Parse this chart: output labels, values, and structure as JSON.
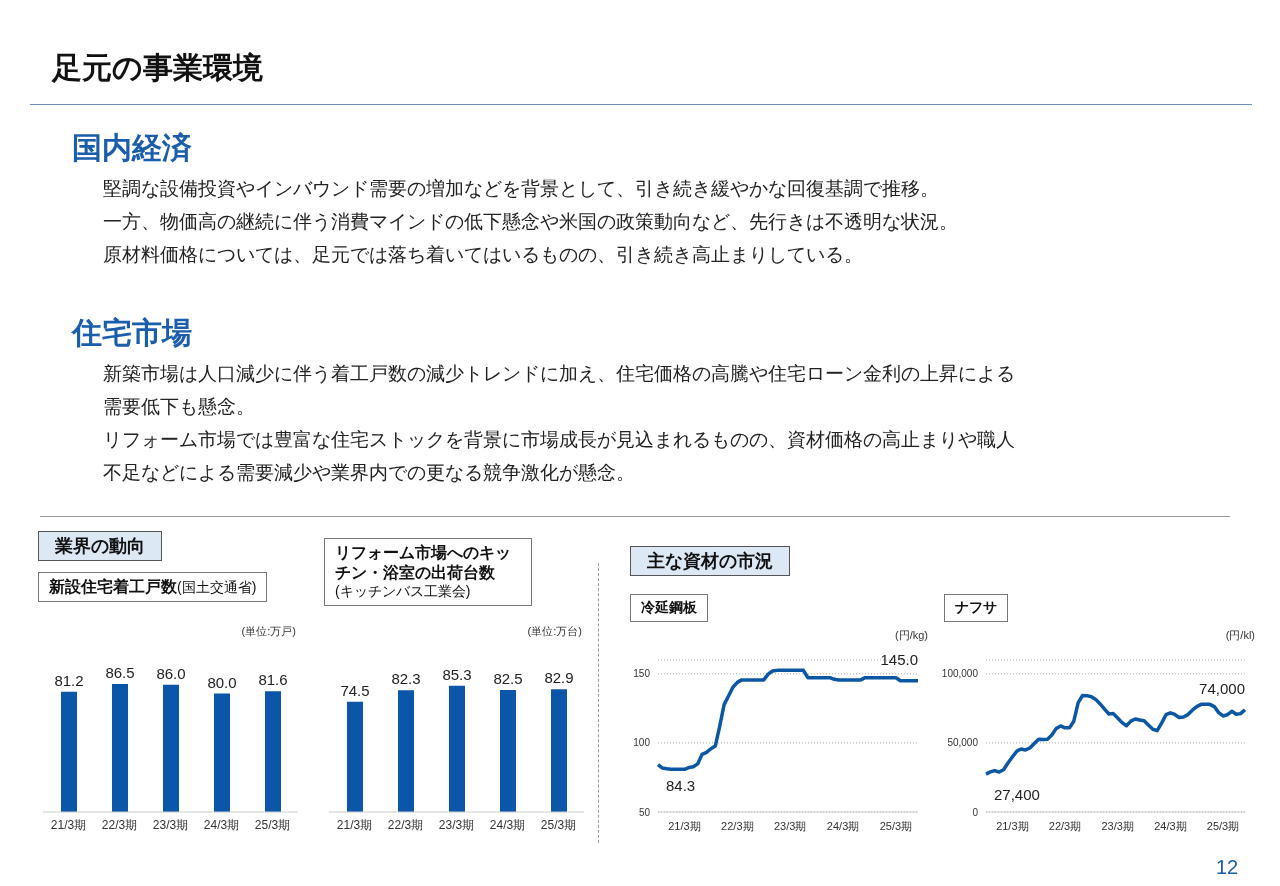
{
  "chart_data": [
    {
      "type": "other",
      "title": "足元の事業環境",
      "annotations": [
        "国内経済",
        "堅調な設備投資やインバウンド需要の増加などを背景として、引き続き緩やかな回復基調で推移。",
        "一方、物価高の継続に伴う消費マインドの低下懸念や米国の政策動向など、先行きは不透明な状況。",
        "原材料価格については、足元では落ち着いてはいるものの、引き続き高止まりしている。",
        "住宅市場",
        "新築市場は人口減少に伴う着工戸数の減少トレンドに加え、住宅価格の高騰や住宅ローン金利の上昇による",
        "需要低下も懸念。",
        "リフォーム市場では豊富な住宅ストックを背景に市場成長が見込まれるものの、資材価格の高止まりや職人",
        "不足などによる需要減少や業界内での更なる競争激化が懸念。",
        "業界の動向",
        "主な資材の市況",
        "12"
      ]
    },
    {
      "type": "bar",
      "title": "新設住宅着工戸数",
      "subtitle": "(国土交通省)",
      "ylabel": "(単位:万戸)",
      "categories": [
        "21/3期",
        "22/3期",
        "23/3期",
        "24/3期",
        "25/3期"
      ],
      "values": [
        81.2,
        86.5,
        86.0,
        80.0,
        81.6
      ],
      "value_labels": [
        "81.2",
        "86.5",
        "86.0",
        "80.0",
        "81.6"
      ],
      "color": "#0b56a8",
      "tick_labels": "x"
    },
    {
      "type": "bar",
      "title": "リフォーム市場へのキッチン・浴室の出荷台数",
      "subtitle": "(キッチンバス工業会)",
      "ylabel": "(単位:万台)",
      "categories": [
        "21/3期",
        "22/3期",
        "23/3期",
        "24/3期",
        "25/3期"
      ],
      "values": [
        74.5,
        82.3,
        85.3,
        82.5,
        82.9
      ],
      "value_labels": [
        "74.5",
        "82.3",
        "85.3",
        "82.5",
        "82.9"
      ],
      "color": "#0b56a8",
      "tick_labels": "x"
    },
    {
      "type": "line",
      "title": "冷延鋼板",
      "ylabel": "(円/kg)",
      "annotations": [
        "84.3",
        "145.0"
      ],
      "categories": [
        null,
        null,
        null,
        null,
        null,
        null,
        "21/3期",
        null,
        null,
        null,
        null,
        null,
        null,
        null,
        null,
        null,
        null,
        null,
        "22/3期",
        null,
        null,
        null,
        null,
        null,
        null,
        null,
        null,
        null,
        null,
        null,
        "23/3期",
        null,
        null,
        null,
        null,
        null,
        null,
        null,
        null,
        null,
        null,
        null,
        "24/3期",
        null,
        null,
        null,
        null,
        null,
        null,
        null,
        null,
        null,
        null,
        null,
        "25/3期",
        null,
        null,
        null,
        null,
        null
      ],
      "ylim": [
        50,
        160
      ],
      "yticks": [
        50,
        100,
        150
      ],
      "grid": "y",
      "marker": "none",
      "line_style": "solid",
      "series": [
        {
          "color": "#0b57a4",
          "values": [
            84.3,
            81.8,
            81.3,
            80.9,
            80.9,
            80.9,
            80.9,
            82.2,
            82.7,
            84.8,
            91.7,
            93.1,
            95.8,
            97.7,
            112,
            127.7,
            134,
            140.3,
            143.8,
            145.6,
            145.6,
            145.6,
            145.6,
            145.6,
            145.6,
            149.8,
            152,
            152.5,
            152.5,
            152.5,
            152.5,
            152.5,
            152.5,
            152.5,
            147.2,
            147.2,
            147.2,
            147.2,
            147.2,
            147.2,
            146,
            145.6,
            145.6,
            145.6,
            145.6,
            145.6,
            145.6,
            147.2,
            147.2,
            147.2,
            147.2,
            147.2,
            147.2,
            147.2,
            147.2,
            145.0,
            145.0,
            145.0,
            145.0,
            145.0
          ]
        }
      ]
    },
    {
      "type": "line",
      "title": "ナフサ",
      "ylabel": "(円/kl)",
      "annotations": [
        "27,400",
        "74,000"
      ],
      "categories": [
        null,
        null,
        null,
        null,
        null,
        null,
        "21/3期",
        null,
        null,
        null,
        null,
        null,
        null,
        null,
        null,
        null,
        null,
        null,
        "22/3期",
        null,
        null,
        null,
        null,
        null,
        null,
        null,
        null,
        null,
        null,
        null,
        "23/3期",
        null,
        null,
        null,
        null,
        null,
        null,
        null,
        null,
        null,
        null,
        null,
        "24/3期",
        null,
        null,
        null,
        null,
        null,
        null,
        null,
        null,
        null,
        null,
        null,
        "25/3期",
        null,
        null,
        null,
        null,
        null
      ],
      "ylim": [
        0,
        110000
      ],
      "yticks": [
        0,
        {
          "value": 50000,
          "label": "50,000"
        },
        {
          "value": 100000,
          "label": "100,000"
        }
      ],
      "grid": "y",
      "marker": "none",
      "line_style": "solid",
      "series": [
        {
          "color": "#0b57a4",
          "values": [
            27400,
            29000,
            30000,
            28900,
            30600,
            35500,
            39800,
            44000,
            45600,
            44900,
            46300,
            49500,
            52600,
            52400,
            52700,
            55700,
            60500,
            62300,
            60900,
            60900,
            65700,
            79200,
            84300,
            84200,
            83400,
            81500,
            78200,
            74400,
            70900,
            71200,
            68000,
            64700,
            62400,
            65800,
            67300,
            66600,
            66100,
            62900,
            59900,
            58900,
            64300,
            70400,
            71800,
            70600,
            68400,
            68800,
            70500,
            73700,
            76300,
            77900,
            77900,
            77900,
            76300,
            71900,
            69500,
            70400,
            72900,
            70700,
            71200,
            74000
          ]
        }
      ]
    }
  ]
}
